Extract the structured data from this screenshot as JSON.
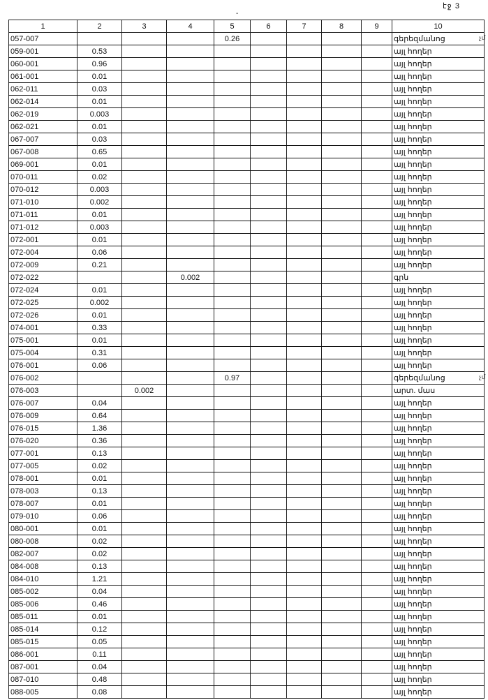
{
  "page_label": "էջ 3",
  "top_mark": "-",
  "headers": [
    "1",
    "2",
    "3",
    "4",
    "5",
    "6",
    "7",
    "8",
    "9",
    "10"
  ],
  "rows": [
    {
      "cells": [
        "057-007",
        "",
        "",
        "",
        "0.26",
        "",
        "",
        "",
        "",
        "գերեզմանոց"
      ],
      "note": "չմ"
    },
    {
      "cells": [
        "059-001",
        "0.53",
        "",
        "",
        "",
        "",
        "",
        "",
        "",
        "այլ հողեր"
      ]
    },
    {
      "cells": [
        "060-001",
        "0.96",
        "",
        "",
        "",
        "",
        "",
        "",
        "",
        "այլ հողեր"
      ]
    },
    {
      "cells": [
        "061-001",
        "0.01",
        "",
        "",
        "",
        "",
        "",
        "",
        "",
        "այլ հողեր"
      ]
    },
    {
      "cells": [
        "062-011",
        "0.03",
        "",
        "",
        "",
        "",
        "",
        "",
        "",
        "այլ հողեր"
      ]
    },
    {
      "cells": [
        "062-014",
        "0.01",
        "",
        "",
        "",
        "",
        "",
        "",
        "",
        "այլ հողեր"
      ]
    },
    {
      "cells": [
        "062-019",
        "0.003",
        "",
        "",
        "",
        "",
        "",
        "",
        "",
        "այլ հողեր"
      ]
    },
    {
      "cells": [
        "062-021",
        "0.01",
        "",
        "",
        "",
        "",
        "",
        "",
        "",
        "այլ հողեր"
      ]
    },
    {
      "cells": [
        "067-007",
        "0.03",
        "",
        "",
        "",
        "",
        "",
        "",
        "",
        "այլ հողեր"
      ]
    },
    {
      "cells": [
        "067-008",
        "0.65",
        "",
        "",
        "",
        "",
        "",
        "",
        "",
        "այլ հողեր"
      ]
    },
    {
      "cells": [
        "069-001",
        "0.01",
        "",
        "",
        "",
        "",
        "",
        "",
        "",
        "այլ հողեր"
      ]
    },
    {
      "cells": [
        "070-011",
        "0.02",
        "",
        "",
        "",
        "",
        "",
        "",
        "",
        "այլ հողեր"
      ]
    },
    {
      "cells": [
        "070-012",
        "0.003",
        "",
        "",
        "",
        "",
        "",
        "",
        "",
        "այլ հողեր"
      ]
    },
    {
      "cells": [
        "071-010",
        "0.002",
        "",
        "",
        "",
        "",
        "",
        "",
        "",
        "այլ հողեր"
      ]
    },
    {
      "cells": [
        "071-011",
        "0.01",
        "",
        "",
        "",
        "",
        "",
        "",
        "",
        "այլ հողեր"
      ]
    },
    {
      "cells": [
        "071-012",
        "0.003",
        "",
        "",
        "",
        "",
        "",
        "",
        "",
        "այլ հողեր"
      ]
    },
    {
      "cells": [
        "072-001",
        "0.01",
        "",
        "",
        "",
        "",
        "",
        "",
        "",
        "այլ հողեր"
      ]
    },
    {
      "cells": [
        "072-004",
        "0.06",
        "",
        "",
        "",
        "",
        "",
        "",
        "",
        "այլ հողեր"
      ]
    },
    {
      "cells": [
        "072-009",
        "0.21",
        "",
        "",
        "",
        "",
        "",
        "",
        "",
        "այլ հողեր"
      ]
    },
    {
      "cells": [
        "072-022",
        "",
        "",
        "0.002",
        "",
        "",
        "",
        "",
        "",
        "գրն"
      ]
    },
    {
      "cells": [
        "072-024",
        "0.01",
        "",
        "",
        "",
        "",
        "",
        "",
        "",
        "այլ հողեր"
      ]
    },
    {
      "cells": [
        "072-025",
        "0.002",
        "",
        "",
        "",
        "",
        "",
        "",
        "",
        "այլ հողեր"
      ]
    },
    {
      "cells": [
        "072-026",
        "0.01",
        "",
        "",
        "",
        "",
        "",
        "",
        "",
        "այլ հողեր"
      ]
    },
    {
      "cells": [
        "074-001",
        "0.33",
        "",
        "",
        "",
        "",
        "",
        "",
        "",
        "այլ հողեր"
      ]
    },
    {
      "cells": [
        "075-001",
        "0.01",
        "",
        "",
        "",
        "",
        "",
        "",
        "",
        "այլ հողեր"
      ]
    },
    {
      "cells": [
        "075-004",
        "0.31",
        "",
        "",
        "",
        "",
        "",
        "",
        "",
        "այլ հողեր"
      ]
    },
    {
      "cells": [
        "076-001",
        "0.06",
        "",
        "",
        "",
        "",
        "",
        "",
        "",
        "այլ հողեր"
      ]
    },
    {
      "cells": [
        "076-002",
        "",
        "",
        "",
        "0.97",
        "",
        "",
        "",
        "",
        "գերեզմանոց"
      ],
      "note": "չմ"
    },
    {
      "cells": [
        "076-003",
        "",
        "0.002",
        "",
        "",
        "",
        "",
        "",
        "",
        "արտ. մաս"
      ]
    },
    {
      "cells": [
        "076-007",
        "0.04",
        "",
        "",
        "",
        "",
        "",
        "",
        "",
        "այլ հողեր"
      ]
    },
    {
      "cells": [
        "076-009",
        "0.64",
        "",
        "",
        "",
        "",
        "",
        "",
        "",
        "այլ հողեր"
      ]
    },
    {
      "cells": [
        "076-015",
        "1.36",
        "",
        "",
        "",
        "",
        "",
        "",
        "",
        "այլ հողեր"
      ]
    },
    {
      "cells": [
        "076-020",
        "0.36",
        "",
        "",
        "",
        "",
        "",
        "",
        "",
        "այլ հողեր"
      ]
    },
    {
      "cells": [
        "077-001",
        "0.13",
        "",
        "",
        "",
        "",
        "",
        "",
        "",
        "այլ հողեր"
      ]
    },
    {
      "cells": [
        "077-005",
        "0.02",
        "",
        "",
        "",
        "",
        "",
        "",
        "",
        "այլ հողեր"
      ]
    },
    {
      "cells": [
        "078-001",
        "0.01",
        "",
        "",
        "",
        "",
        "",
        "",
        "",
        "այլ հողեր"
      ]
    },
    {
      "cells": [
        "078-003",
        "0.13",
        "",
        "",
        "",
        "",
        "",
        "",
        "",
        "այլ հողեր"
      ]
    },
    {
      "cells": [
        "078-007",
        "0.01",
        "",
        "",
        "",
        "",
        "",
        "",
        "",
        "այլ հողեր"
      ]
    },
    {
      "cells": [
        "079-010",
        "0.06",
        "",
        "",
        "",
        "",
        "",
        "",
        "",
        "այլ հողեր"
      ]
    },
    {
      "cells": [
        "080-001",
        "0.01",
        "",
        "",
        "",
        "",
        "",
        "",
        "",
        "այլ հողեր"
      ]
    },
    {
      "cells": [
        "080-008",
        "0.02",
        "",
        "",
        "",
        "",
        "",
        "",
        "",
        "այլ հողեր"
      ]
    },
    {
      "cells": [
        "082-007",
        "0.02",
        "",
        "",
        "",
        "",
        "",
        "",
        "",
        "այլ հողեր"
      ]
    },
    {
      "cells": [
        "084-008",
        "0.13",
        "",
        "",
        "",
        "",
        "",
        "",
        "",
        "այլ հողեր"
      ]
    },
    {
      "cells": [
        "084-010",
        "1.21",
        "",
        "",
        "",
        "",
        "",
        "",
        "",
        "այլ հողեր"
      ]
    },
    {
      "cells": [
        "085-002",
        "0.04",
        "",
        "",
        "",
        "",
        "",
        "",
        "",
        "այլ հողեր"
      ]
    },
    {
      "cells": [
        "085-006",
        "0.46",
        "",
        "",
        "",
        "",
        "",
        "",
        "",
        "այլ հողեր"
      ]
    },
    {
      "cells": [
        "085-011",
        "0.01",
        "",
        "",
        "",
        "",
        "",
        "",
        "",
        "այլ հողեր"
      ]
    },
    {
      "cells": [
        "085-014",
        "0.12",
        "",
        "",
        "",
        "",
        "",
        "",
        "",
        "այլ հողեր"
      ]
    },
    {
      "cells": [
        "085-015",
        "0.05",
        "",
        "",
        "",
        "",
        "",
        "",
        "",
        "այլ հողեր"
      ]
    },
    {
      "cells": [
        "086-001",
        "0.11",
        "",
        "",
        "",
        "",
        "",
        "",
        "",
        "այլ հողեր"
      ]
    },
    {
      "cells": [
        "087-001",
        "0.04",
        "",
        "",
        "",
        "",
        "",
        "",
        "",
        "այլ հողեր"
      ]
    },
    {
      "cells": [
        "087-010",
        "0.48",
        "",
        "",
        "",
        "",
        "",
        "",
        "",
        "այլ հողեր"
      ]
    },
    {
      "cells": [
        "088-005",
        "0.08",
        "",
        "",
        "",
        "",
        "",
        "",
        "",
        "այլ հողեր"
      ]
    }
  ]
}
